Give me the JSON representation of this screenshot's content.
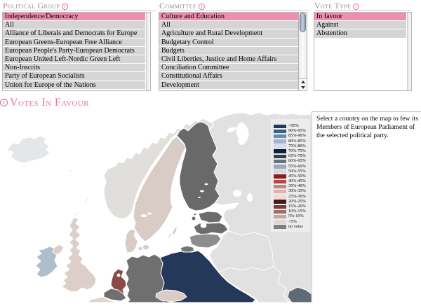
{
  "panels": {
    "political_group": {
      "label": "Political Group",
      "items": [
        "Independence/Democracy",
        "All",
        "Alliance of Liberals and Democrats for Europe",
        "European Greens-European Free Alliance",
        "European People's Party-European Democrats",
        "European United Left-Nordic Green Left",
        "Non-Inscrits",
        "Party of European Socialists",
        "Union for Europe of the Nations"
      ],
      "selected_index": 0
    },
    "committee": {
      "label": "Committee",
      "items": [
        "Culture and Education",
        "All",
        "Agriculture and Rural Development",
        "Budgetary Control",
        "Budgets",
        "Civil Liberties, Justice and Home Affairs",
        "Conciliation Committee",
        "Constitutional Affairs",
        "Development"
      ],
      "selected_index": 0
    },
    "vote_type": {
      "label": "Vote Type",
      "items": [
        "In favour",
        "Against",
        "Abstention"
      ],
      "selected_index": 0
    }
  },
  "map_section": {
    "title": "Votes In Favour",
    "instruction": "Select a country on the map to few its Members of European Parliament of the selected political party.",
    "legend": [
      {
        "label": ">95%",
        "color": "#1C3A5F"
      },
      {
        "label": "90%-95%",
        "color": "#37618F"
      },
      {
        "label": "85%-90%",
        "color": "#6C8CB8"
      },
      {
        "label": "80%-85%",
        "color": "#9FB4D2"
      },
      {
        "label": "75%-80%",
        "color": "#D3DDEB"
      },
      {
        "label": "70%-75%",
        "color": "#0F2238"
      },
      {
        "label": "65%-70%",
        "color": "#35404F"
      },
      {
        "label": "60%-65%",
        "color": "#66727F"
      },
      {
        "label": "55%-60%",
        "color": "#9DA9B5"
      },
      {
        "label": "50%-55%",
        "color": "#D6DADF"
      },
      {
        "label": "45%-50%",
        "color": "#8F1A1D"
      },
      {
        "label": "40%-45%",
        "color": "#B04A46"
      },
      {
        "label": "35%-40%",
        "color": "#C98380"
      },
      {
        "label": "30%-35%",
        "color": "#DFB2AF"
      },
      {
        "label": "25%-30%",
        "color": "#F0DAD8"
      },
      {
        "label": "20%-25%",
        "color": "#491518"
      },
      {
        "label": "15%-20%",
        "color": "#7C3A39"
      },
      {
        "label": "10%-15%",
        "color": "#9E6E6B"
      },
      {
        "label": "5%-10%",
        "color": "#C3A7A3"
      },
      {
        "label": "<5%",
        "color": "#E3D6D3"
      },
      {
        "label": "no votes",
        "color": "#7F7F7F"
      }
    ],
    "countries": {
      "iceland": "#E4E6E9",
      "norway": "#E0DFDC",
      "sweden": "#D9CCC7",
      "finland": "#696969",
      "estonia": "#6C6C6C",
      "latvia": "#6C6C6C",
      "lithuania": "#8D8D8D",
      "kaliningrad": "#757575",
      "poland": "#24395A",
      "germany": "#6F6F6F",
      "denmark": "#D9CCC7",
      "netherlands": "#8B4A45",
      "belgium": "#6F6F6F",
      "czech": "#DCCAC6",
      "uk": "#DCCFCA",
      "n_ireland": "#DCCFCA",
      "ireland": "#AEBECB",
      "france": "#E0D4D0",
      "romania": "#5E6B76",
      "east_europe": "#E1E1E1"
    }
  }
}
